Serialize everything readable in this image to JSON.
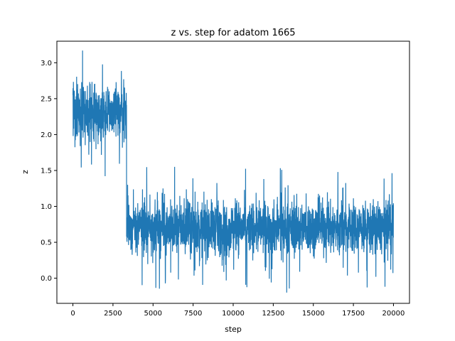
{
  "chart_data": {
    "type": "line",
    "title": "z vs. step for adatom 1665",
    "xlabel": "step",
    "ylabel": "z",
    "xlim": [
      -1000,
      21000
    ],
    "ylim": [
      -0.35,
      3.3
    ],
    "xticks": [
      0,
      2500,
      5000,
      7500,
      10000,
      12500,
      15000,
      17500,
      20000
    ],
    "yticks": [
      0.0,
      0.5,
      1.0,
      1.5,
      2.0,
      2.5,
      3.0
    ],
    "xtick_labels": [
      "0",
      "2500",
      "5000",
      "7500",
      "10000",
      "12500",
      "15000",
      "17500",
      "20000"
    ],
    "ytick_labels": [
      "0.0",
      "0.5",
      "1.0",
      "1.5",
      "2.0",
      "2.5",
      "3.0"
    ],
    "grid": false,
    "line_color": "#1f77b4",
    "series": [
      {
        "segments": [
          {
            "x_start": 0,
            "x_end": 3350,
            "mean": 2.3,
            "min": 1.42,
            "max": 3.17,
            "core_low": 1.9,
            "core_high": 2.75
          },
          {
            "x_start": 3350,
            "x_end": 20000,
            "mean": 0.7,
            "min": -0.2,
            "max": 1.55,
            "core_low": 0.35,
            "core_high": 1.1
          }
        ]
      }
    ]
  }
}
